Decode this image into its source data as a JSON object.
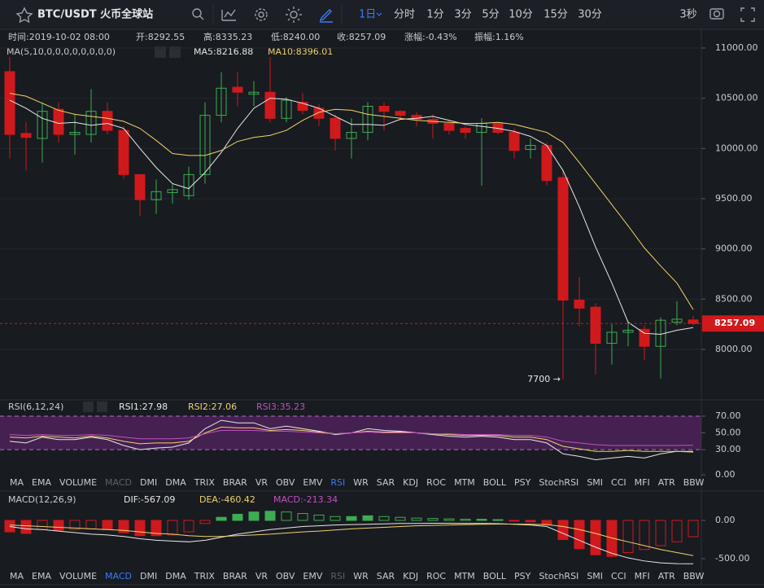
{
  "toolbar": {
    "symbol": "BTC/USDT 火币全球站",
    "intervals": [
      "1日",
      "分时",
      "1分",
      "3分",
      "5分",
      "10分",
      "15分",
      "30分"
    ],
    "refresh": "3秒"
  },
  "info": [
    "时间:2019-10-02 08:00",
    "开:8292.55",
    "高:8335.23",
    "低:8240.00",
    "收:8257.09",
    "涨幅:-0.43%",
    "振幅:1.16%"
  ],
  "indicator_tabs": [
    "MA",
    "EMA",
    "VOLUME",
    "MACD",
    "DMI",
    "DMA",
    "TRIX",
    "BRAR",
    "VR",
    "OBV",
    "EMV",
    "RSI",
    "WR",
    "SAR",
    "KDJ",
    "ROC",
    "MTM",
    "BOLL",
    "PSY",
    "StochRSI",
    "SMI",
    "CCI",
    "MFI",
    "ATR",
    "BBW"
  ],
  "chart_data": [
    {
      "type": "candlestick",
      "title": "MA(5,10,0,0,0,0,0,0,0,0)",
      "open": [
        10765,
        10150,
        10100,
        10390,
        10140,
        10140,
        10370,
        10180,
        9740,
        9490,
        9560,
        9530,
        9740,
        10330,
        10610,
        10540,
        10560,
        10300,
        10460,
        10400,
        10300,
        10100,
        10160,
        10420,
        10370,
        10330,
        10290,
        10250,
        10200,
        10160,
        10250,
        10160,
        9990,
        10030,
        9710,
        8490,
        8420,
        8060,
        8170,
        8200,
        8030,
        8270,
        8292.55
      ],
      "high": [
        10910,
        10260,
        10460,
        10460,
        10340,
        10590,
        10460,
        10220,
        9740,
        9690,
        9650,
        9820,
        10460,
        10760,
        10760,
        10670,
        10910,
        10510,
        10550,
        10440,
        10340,
        10300,
        10460,
        10460,
        10380,
        10360,
        10340,
        10280,
        10220,
        10300,
        10260,
        10200,
        10100,
        10060,
        9780,
        8720,
        8460,
        8250,
        8280,
        8240,
        8320,
        8480,
        8335.23
      ],
      "low": [
        9900,
        9780,
        9860,
        10060,
        9940,
        10060,
        10140,
        9700,
        9330,
        9350,
        9450,
        9490,
        9650,
        10260,
        10420,
        10420,
        10260,
        10260,
        10340,
        10220,
        9980,
        9900,
        10080,
        10180,
        10280,
        10220,
        10100,
        10140,
        10100,
        9630,
        10140,
        9900,
        9900,
        9630,
        7700,
        8230,
        7750,
        7850,
        8030,
        7890,
        7710,
        8240,
        8240
      ],
      "close": [
        10140,
        10110,
        10370,
        10140,
        10160,
        10370,
        10180,
        9740,
        9490,
        9570,
        9590,
        9740,
        10330,
        10600,
        10560,
        10560,
        10300,
        10480,
        10380,
        10300,
        10100,
        10160,
        10420,
        10370,
        10330,
        10290,
        10250,
        10180,
        10160,
        10250,
        10160,
        9980,
        10030,
        9680,
        8490,
        8410,
        8060,
        8170,
        8190,
        8030,
        8290,
        8300,
        8257.09
      ],
      "up_color": "#3dac53",
      "down_color": "#d0191c",
      "lines": [
        {
          "name": "MA5:8216.88",
          "color": "#e8e8e8",
          "values": [
            10480,
            10400,
            10300,
            10250,
            10260,
            10230,
            10250,
            10200,
            10000,
            9810,
            9650,
            9600,
            9760,
            9960,
            10200,
            10400,
            10500,
            10490,
            10450,
            10400,
            10320,
            10240,
            10240,
            10230,
            10290,
            10300,
            10320,
            10280,
            10240,
            10220,
            10200,
            10170,
            10120,
            10030,
            9780,
            9420,
            9020,
            8660,
            8270,
            8160,
            8150,
            8190,
            8216.88
          ]
        },
        {
          "name": "MA10:8396.01",
          "color": "#f0d36a",
          "values": [
            10550,
            10520,
            10450,
            10380,
            10340,
            10320,
            10300,
            10270,
            10200,
            10080,
            9950,
            9930,
            9930,
            9980,
            10070,
            10110,
            10130,
            10180,
            10280,
            10360,
            10390,
            10380,
            10340,
            10320,
            10300,
            10280,
            10270,
            10260,
            10250,
            10250,
            10260,
            10240,
            10200,
            10160,
            10060,
            9860,
            9650,
            9440,
            9230,
            9010,
            8830,
            8660,
            8396.01
          ]
        }
      ],
      "current_price": 8257.09,
      "low_annotation": "7700 →",
      "ylim": [
        7505,
        11170
      ],
      "yticks": [
        {
          "value": 11000,
          "label": "11000.00"
        },
        {
          "value": 10500,
          "label": "10500.00"
        },
        {
          "value": 10000,
          "label": "10000.00"
        },
        {
          "value": 9500,
          "label": "9500.00"
        },
        {
          "value": 9000,
          "label": "9000.00"
        },
        {
          "value": 8500,
          "label": "8500.00"
        },
        {
          "value": 8000,
          "label": "8000.00"
        }
      ],
      "grid": true
    },
    {
      "type": "line",
      "title": "RSI(6,12,24)",
      "active_tab": 11,
      "muted_tab": 3,
      "band": [
        30,
        70
      ],
      "band_color": "#7a2a8c",
      "series": [
        {
          "name": "RSI1:27.98",
          "color": "#e8e8e8",
          "values": [
            40,
            38,
            45,
            42,
            42,
            45,
            42,
            35,
            30,
            32,
            33,
            38,
            55,
            65,
            62,
            62,
            55,
            58,
            55,
            52,
            48,
            50,
            55,
            53,
            52,
            50,
            48,
            46,
            45,
            46,
            45,
            42,
            42,
            38,
            25,
            22,
            18,
            20,
            22,
            20,
            25,
            28,
            27.98
          ]
        },
        {
          "name": "RSI2:27.06",
          "color": "#f0d36a",
          "values": [
            45,
            44,
            46,
            45,
            44,
            46,
            44,
            40,
            37,
            38,
            38,
            40,
            50,
            57,
            56,
            56,
            53,
            54,
            53,
            51,
            49,
            50,
            52,
            51,
            51,
            50,
            49,
            48,
            47,
            47,
            47,
            45,
            45,
            42,
            34,
            31,
            28,
            28,
            29,
            28,
            28,
            28,
            27.06
          ]
        },
        {
          "name": "RSI3:35.23",
          "color": "#c44fc4",
          "values": [
            48,
            47,
            48,
            47,
            47,
            48,
            47,
            45,
            43,
            43,
            43,
            44,
            49,
            53,
            53,
            53,
            52,
            52,
            51,
            50,
            49,
            50,
            51,
            50,
            50,
            50,
            49,
            49,
            48,
            48,
            48,
            47,
            47,
            45,
            40,
            38,
            36,
            35,
            35,
            35,
            35,
            35,
            35.23
          ]
        }
      ],
      "ylim": [
        -6.8,
        75.8
      ],
      "yticks": [
        {
          "value": 70,
          "label": "70.00"
        },
        {
          "value": 50,
          "label": "50.00"
        },
        {
          "value": 30,
          "label": "30.00"
        },
        {
          "value": 0,
          "label": "0.00"
        }
      ]
    },
    {
      "type": "macd",
      "title": "MACD(12,26,9)",
      "active_tab": 3,
      "muted_tab": 11,
      "histogram": {
        "name": "MACD:-213.34",
        "color": "#c44fc4",
        "up_color": "#3dac53",
        "down_color": "#d0191c",
        "values": [
          -150,
          -170,
          -120,
          -130,
          -120,
          -110,
          -120,
          -160,
          -200,
          -200,
          -190,
          -150,
          -40,
          40,
          80,
          110,
          120,
          110,
          90,
          70,
          50,
          50,
          60,
          50,
          40,
          30,
          25,
          20,
          15,
          15,
          10,
          -10,
          -20,
          -60,
          -250,
          -370,
          -450,
          -470,
          -420,
          -380,
          -330,
          -280,
          -213.34
        ]
      },
      "series": [
        {
          "name": "DIF:-567.09",
          "color": "#e8e8e8",
          "values": [
            -80,
            -110,
            -120,
            -140,
            -160,
            -180,
            -190,
            -210,
            -240,
            -260,
            -270,
            -280,
            -260,
            -220,
            -180,
            -150,
            -120,
            -100,
            -80,
            -70,
            -60,
            -55,
            -50,
            -45,
            -40,
            -40,
            -38,
            -38,
            -40,
            -40,
            -42,
            -50,
            -60,
            -80,
            -170,
            -260,
            -350,
            -430,
            -490,
            -530,
            -555,
            -565,
            -567.09
          ]
        },
        {
          "name": "DEA:-460.42",
          "color": "#f0d36a",
          "values": [
            -60,
            -70,
            -80,
            -90,
            -100,
            -110,
            -120,
            -130,
            -150,
            -170,
            -180,
            -200,
            -210,
            -210,
            -200,
            -190,
            -180,
            -165,
            -150,
            -140,
            -125,
            -110,
            -100,
            -90,
            -80,
            -70,
            -65,
            -60,
            -55,
            -50,
            -48,
            -48,
            -50,
            -55,
            -80,
            -120,
            -170,
            -230,
            -280,
            -330,
            -380,
            -420,
            -460.42
          ]
        }
      ],
      "ylim": [
        -649,
        202
      ],
      "yticks": [
        {
          "value": 0,
          "label": "0.00"
        },
        {
          "value": -500,
          "label": "-500.00"
        }
      ]
    }
  ]
}
